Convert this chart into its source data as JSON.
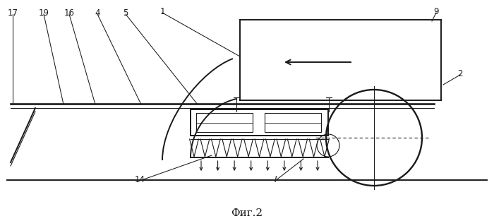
{
  "bg_color": "#ffffff",
  "line_color": "#1a1a1a",
  "title": "Фиг.2",
  "figsize": [
    7.0,
    3.13
  ],
  "dpi": 100
}
